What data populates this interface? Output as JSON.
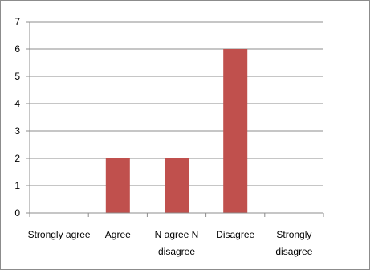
{
  "chart_data": {
    "type": "bar",
    "categories": [
      [
        "Strongly agree"
      ],
      [
        "Agree"
      ],
      [
        "N agree N",
        "disagree"
      ],
      [
        "Disagree"
      ],
      [
        "Strongly",
        "disagree"
      ]
    ],
    "values": [
      0,
      2,
      2,
      6,
      0
    ],
    "title": "",
    "xlabel": "",
    "ylabel": "",
    "ylim": [
      0,
      7
    ],
    "yticks": [
      "0",
      "1",
      "2",
      "3",
      "4",
      "5",
      "6",
      "7"
    ],
    "grid": true,
    "legend": "none",
    "bar_color": "#C0504D",
    "grid_color": "#8c8c8c",
    "axis_color": "#8c8c8c"
  }
}
